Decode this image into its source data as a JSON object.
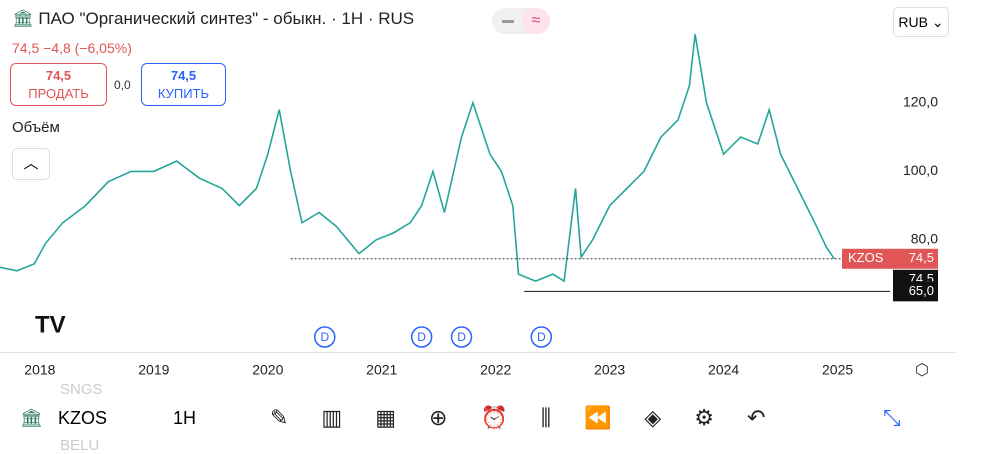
{
  "header": {
    "title": "ПАО \"Органический синтез\" - обыкн. · 1H · RUS",
    "price": "74,5",
    "change": "−4,8 (−6,05%)",
    "sell_price": "74,5",
    "sell": "ПРОДАТЬ",
    "spread": "0,0",
    "buy_price": "74,5",
    "buy": "КУПИТЬ",
    "volume": "Объём",
    "currency": "RUB"
  },
  "chart_data": {
    "type": "line",
    "color": "#26a69a",
    "xlim": [
      2017.65,
      2025.46
    ],
    "xticks": [
      2018,
      2019,
      2020,
      2021,
      2022,
      2023,
      2024,
      2025
    ],
    "ylim": [
      47.3,
      150
    ],
    "yticks": [
      {
        "value": 120,
        "label": "120,0"
      },
      {
        "value": 100,
        "label": "100,0"
      },
      {
        "value": 80,
        "label": "80,0"
      }
    ],
    "series": [
      {
        "name": "KZOS",
        "color": "#26a69a",
        "x": [
          2017.65,
          2017.8,
          2017.95,
          2018.05,
          2018.2,
          2018.4,
          2018.6,
          2018.8,
          2019.0,
          2019.2,
          2019.4,
          2019.6,
          2019.75,
          2019.9,
          2020.0,
          2020.1,
          2020.2,
          2020.3,
          2020.45,
          2020.6,
          2020.8,
          2020.95,
          2021.1,
          2021.25,
          2021.35,
          2021.45,
          2021.55,
          2021.7,
          2021.8,
          2021.95,
          2022.05,
          2022.15,
          2022.2,
          2022.35,
          2022.5,
          2022.6,
          2022.7,
          2022.75,
          2022.85,
          2023.0,
          2023.15,
          2023.3,
          2023.45,
          2023.6,
          2023.7,
          2023.75,
          2023.85,
          2024.0,
          2024.15,
          2024.3,
          2024.4,
          2024.5,
          2024.65,
          2024.8,
          2024.9,
          2024.97
        ],
        "values": [
          72,
          71,
          73,
          79,
          85,
          90,
          97,
          100,
          100,
          103,
          98,
          95,
          90,
          95,
          105,
          118,
          100,
          85,
          88,
          84,
          76,
          80,
          82,
          85,
          90,
          100,
          88,
          110,
          120,
          105,
          100,
          90,
          70,
          68,
          70,
          68,
          95,
          75,
          80,
          90,
          95,
          100,
          110,
          115,
          125,
          140,
          120,
          105,
          110,
          108,
          118,
          105,
          95,
          85,
          78,
          74.5
        ]
      }
    ],
    "price_lines": [
      {
        "name": "KZOS",
        "value": 74.5,
        "label": "74,5"
      },
      {
        "value": 74.5,
        "label": "74,5"
      },
      {
        "value": 65,
        "label": "65,0"
      }
    ],
    "dividends": {
      "label": "D",
      "x": [
        2020.5,
        2021.35,
        2021.7,
        2022.4
      ]
    }
  },
  "toolbar": {
    "symbol": "KZOS",
    "interval": "1H"
  },
  "watermark": [
    "SNGS",
    "BELU"
  ]
}
